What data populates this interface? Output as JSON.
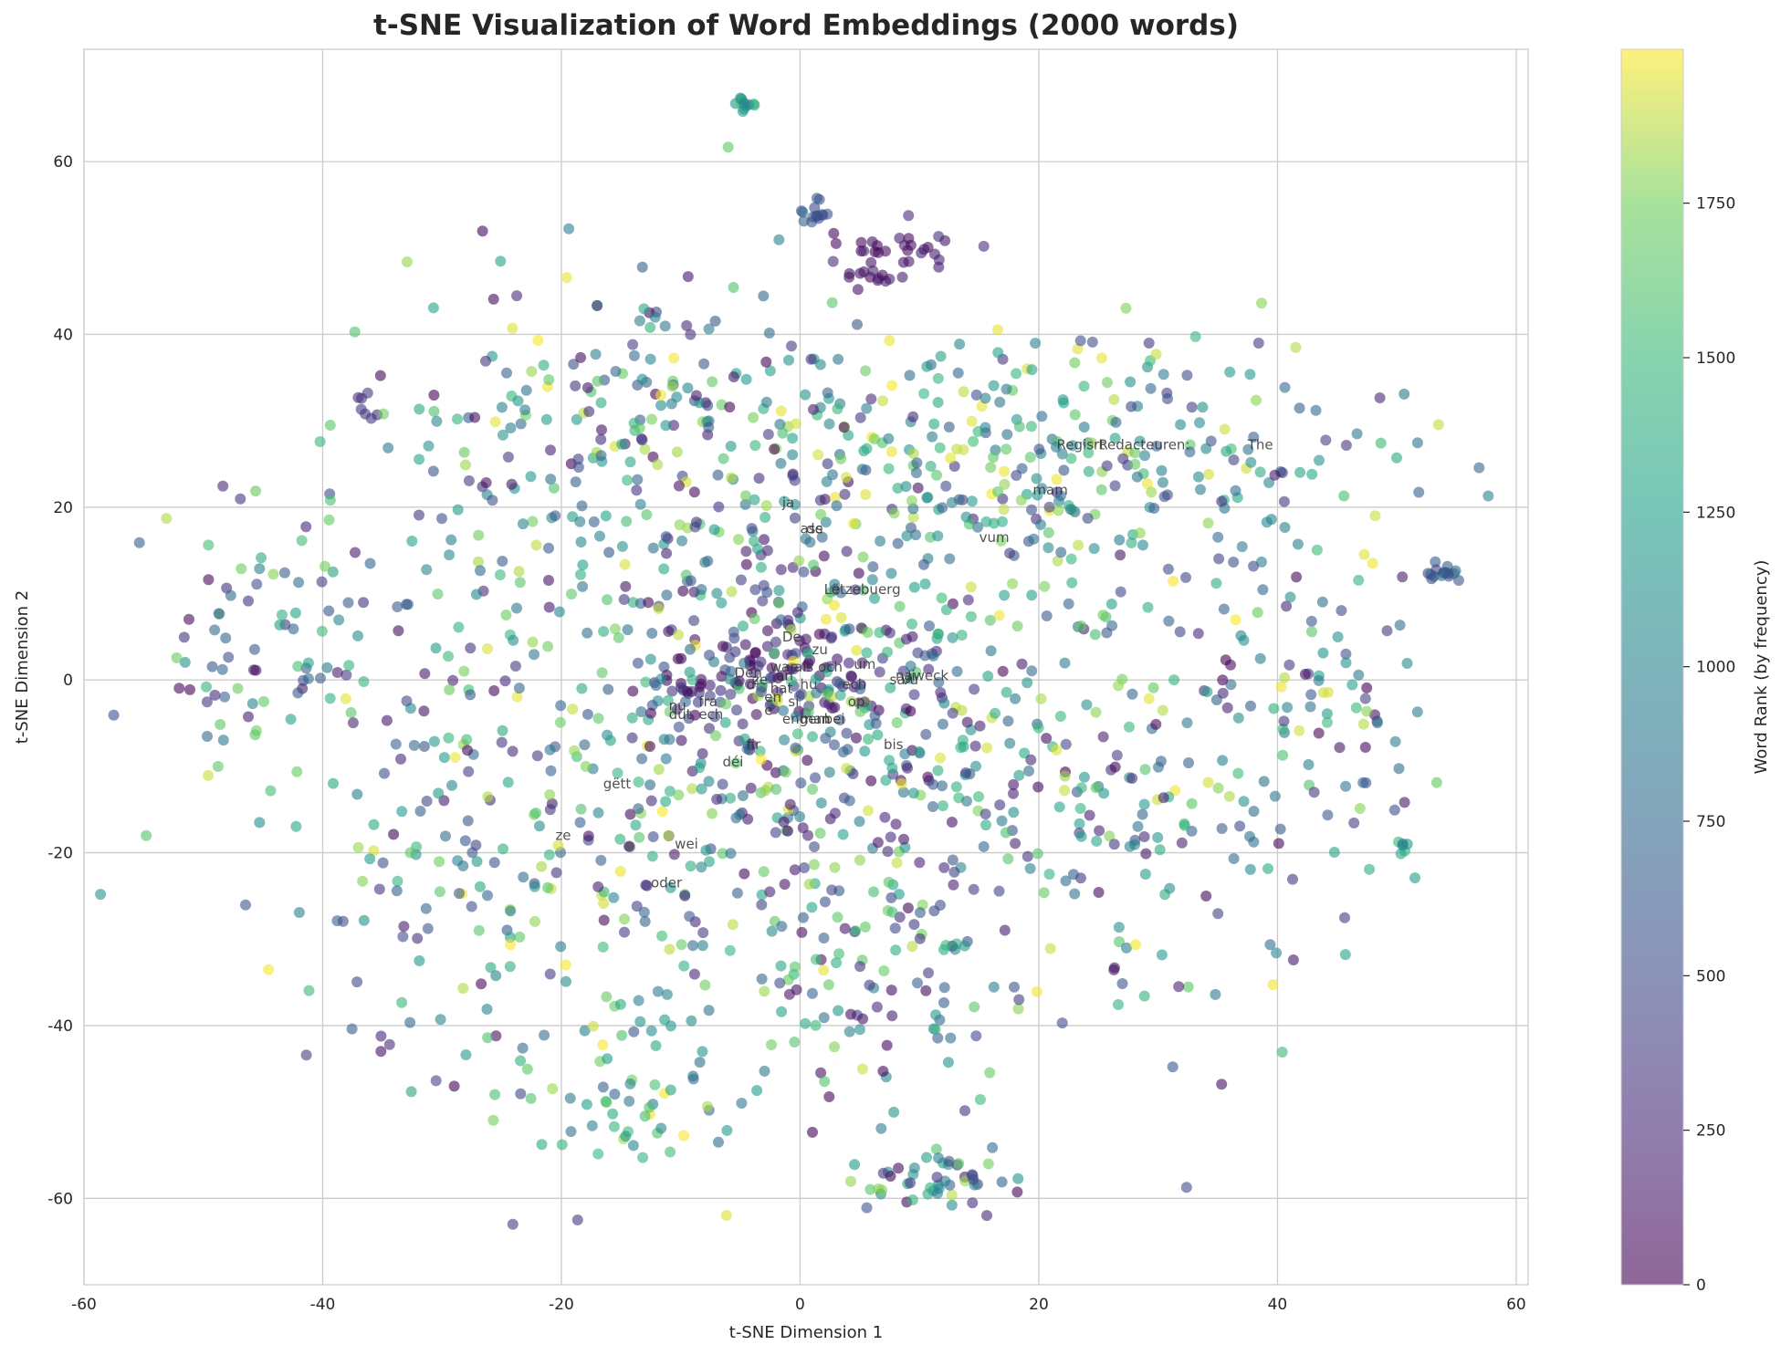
{
  "chart_data": {
    "type": "scatter",
    "title": "t-SNE Visualization of Word Embeddings (2000 words)",
    "xlabel": "t-SNE Dimension 1",
    "ylabel": "t-SNE Dimension 2",
    "xlim": [
      -60,
      61
    ],
    "ylim": [
      -70,
      73
    ],
    "x_ticks": [
      -60,
      -40,
      -20,
      0,
      20,
      40,
      60
    ],
    "y_ticks": [
      -60,
      -40,
      -20,
      0,
      20,
      40,
      60
    ],
    "x_tick_labels": [
      "-60",
      "-40",
      "-20",
      "0",
      "20",
      "40",
      "60"
    ],
    "y_tick_labels": [
      "-60",
      "-40",
      "-20",
      "0",
      "20",
      "40",
      "60"
    ],
    "grid": true,
    "colormap": "viridis",
    "point_alpha": 0.6,
    "colorbar": {
      "label": "Word Rank (by frequency)",
      "range": [
        0,
        1999
      ],
      "ticks": [
        0,
        250,
        500,
        750,
        1000,
        1250,
        1500,
        1750
      ],
      "tick_labels": [
        "0",
        "250",
        "500",
        "750",
        "1000",
        "1250",
        "1500",
        "1750"
      ]
    },
    "clusters": [
      {
        "x": -4.5,
        "y": 66.5,
        "sx": 0.6,
        "sy": 0.5,
        "n": 12,
        "rank": [
          900,
          1600
        ]
      },
      {
        "x": 1,
        "y": 54,
        "sx": 0.8,
        "sy": 0.8,
        "n": 14,
        "rank": [
          450,
          750
        ]
      },
      {
        "x": 8,
        "y": 50,
        "sx": 3,
        "sy": 1.2,
        "n": 28,
        "rank": [
          0,
          300
        ]
      },
      {
        "x": 6,
        "y": 46.5,
        "sx": 1.2,
        "sy": 0.7,
        "n": 14,
        "rank": [
          0,
          250
        ]
      },
      {
        "x": 11,
        "y": -58,
        "sx": 3,
        "sy": 2,
        "n": 50,
        "rank": [
          0,
          1900
        ]
      },
      {
        "x": 54,
        "y": 12.5,
        "sx": 1,
        "sy": 0.8,
        "n": 16,
        "rank": [
          450,
          800
        ]
      },
      {
        "x": -36.5,
        "y": 31.5,
        "sx": 0.5,
        "sy": 1,
        "n": 7,
        "rank": [
          200,
          400
        ]
      },
      {
        "x": 50.5,
        "y": -19,
        "sx": 0.3,
        "sy": 0.8,
        "n": 6,
        "rank": [
          600,
          1700
        ]
      },
      {
        "x": -3,
        "y": 1,
        "sx": 5,
        "sy": 4,
        "n": 110,
        "rank": [
          0,
          500
        ]
      },
      {
        "x": 0,
        "y": -5,
        "sx": 14,
        "sy": 14,
        "n": 520,
        "rank": [
          0,
          1999
        ]
      },
      {
        "x": 22,
        "y": 26,
        "sx": 12,
        "sy": 7,
        "n": 260,
        "rank": [
          300,
          1999
        ]
      },
      {
        "x": -20,
        "y": 22,
        "sx": 10,
        "sy": 12,
        "n": 170,
        "rank": [
          0,
          1999
        ]
      },
      {
        "x": -25,
        "y": -20,
        "sx": 10,
        "sy": 14,
        "n": 180,
        "rank": [
          0,
          1999
        ]
      },
      {
        "x": 25,
        "y": -15,
        "sx": 12,
        "sy": 14,
        "n": 180,
        "rank": [
          0,
          1999
        ]
      },
      {
        "x": -45,
        "y": 3,
        "sx": 6,
        "sy": 10,
        "n": 80,
        "rank": [
          0,
          1999
        ]
      },
      {
        "x": 42,
        "y": 0,
        "sx": 5,
        "sy": 12,
        "n": 90,
        "rank": [
          0,
          1999
        ]
      },
      {
        "x": -15,
        "y": -48,
        "sx": 6,
        "sy": 5,
        "n": 60,
        "rank": [
          700,
          1999
        ]
      },
      {
        "x": 0,
        "y": 25,
        "sx": 6,
        "sy": 8,
        "n": 70,
        "rank": [
          0,
          1999
        ]
      },
      {
        "x": -13,
        "y": 32,
        "sx": 5,
        "sy": 8,
        "n": 60,
        "rank": [
          0,
          1999
        ]
      },
      {
        "x": 5,
        "y": -35,
        "sx": 6,
        "sy": 6,
        "n": 70,
        "rank": [
          0,
          1999
        ]
      }
    ],
    "annotations": [
      {
        "text": "Regisrt",
        "x": 21.5,
        "y": 27.2
      },
      {
        "text": "Redacteuren:",
        "x": 25,
        "y": 27.2
      },
      {
        "text": "The",
        "x": 37.5,
        "y": 27.2
      },
      {
        "text": "mam",
        "x": 19.5,
        "y": 22
      },
      {
        "text": "ja",
        "x": -1.5,
        "y": 20.5
      },
      {
        "text": "ass",
        "x": 0,
        "y": 17.5
      },
      {
        "text": "de",
        "x": 0.5,
        "y": 17.5
      },
      {
        "text": "vum",
        "x": 15,
        "y": 16.5
      },
      {
        "text": "Lëtzebuerg",
        "x": 2,
        "y": 10.5
      },
      {
        "text": "De",
        "x": -1.5,
        "y": 5
      },
      {
        "text": "zu",
        "x": 1,
        "y": 3.5
      },
      {
        "text": "war",
        "x": -2.5,
        "y": 1.5
      },
      {
        "text": "als",
        "x": -0.5,
        "y": 1.5
      },
      {
        "text": "och",
        "x": 1.5,
        "y": 1.5
      },
      {
        "text": "um",
        "x": 4.5,
        "y": 1.8
      },
      {
        "text": "Den",
        "x": -5.5,
        "y": 0.8
      },
      {
        "text": "ze",
        "x": -4,
        "y": 0
      },
      {
        "text": "an",
        "x": -2,
        "y": 0.5
      },
      {
        "text": "d'",
        "x": -4.5,
        "y": -0.5
      },
      {
        "text": "hat",
        "x": -2.5,
        "y": -1
      },
      {
        "text": "hu",
        "x": 0,
        "y": -0.5
      },
      {
        "text": "ech",
        "x": 3.5,
        "y": -0.5
      },
      {
        "text": "weck",
        "x": 9.5,
        "y": 0.5
      },
      {
        "text": "na",
        "x": 8,
        "y": 0.5
      },
      {
        "text": "vu",
        "x": 8.5,
        "y": 0
      },
      {
        "text": "Ji",
        "x": 9,
        "y": 0.5
      },
      {
        "text": "sa",
        "x": 7.5,
        "y": 0
      },
      {
        "text": "en",
        "x": -3,
        "y": -2
      },
      {
        "text": "si",
        "x": -1,
        "y": -2.5
      },
      {
        "text": "op",
        "x": 4,
        "y": -2.5
      },
      {
        "text": "nu",
        "x": -11,
        "y": -3
      },
      {
        "text": "fra",
        "x": -8.5,
        "y": -2.5
      },
      {
        "text": "dut",
        "x": -11,
        "y": -4
      },
      {
        "text": "ech",
        "x": -8.5,
        "y": -4
      },
      {
        "text": "e",
        "x": -3,
        "y": -3.5
      },
      {
        "text": "engem",
        "x": -1.5,
        "y": -4.5
      },
      {
        "text": "man",
        "x": 0,
        "y": -4.5
      },
      {
        "text": "bei",
        "x": 2,
        "y": -4.5
      },
      {
        "text": "bis",
        "x": 7,
        "y": -7.5
      },
      {
        "text": "fir",
        "x": -4.5,
        "y": -7.5
      },
      {
        "text": "déi",
        "x": -6.5,
        "y": -9.5
      },
      {
        "text": "gëtt",
        "x": -16.5,
        "y": -12
      },
      {
        "text": "ze",
        "x": -20.5,
        "y": -18
      },
      {
        "text": "wei",
        "x": -10.5,
        "y": -19
      },
      {
        "text": "oder",
        "x": -12.5,
        "y": -23.5
      }
    ]
  }
}
